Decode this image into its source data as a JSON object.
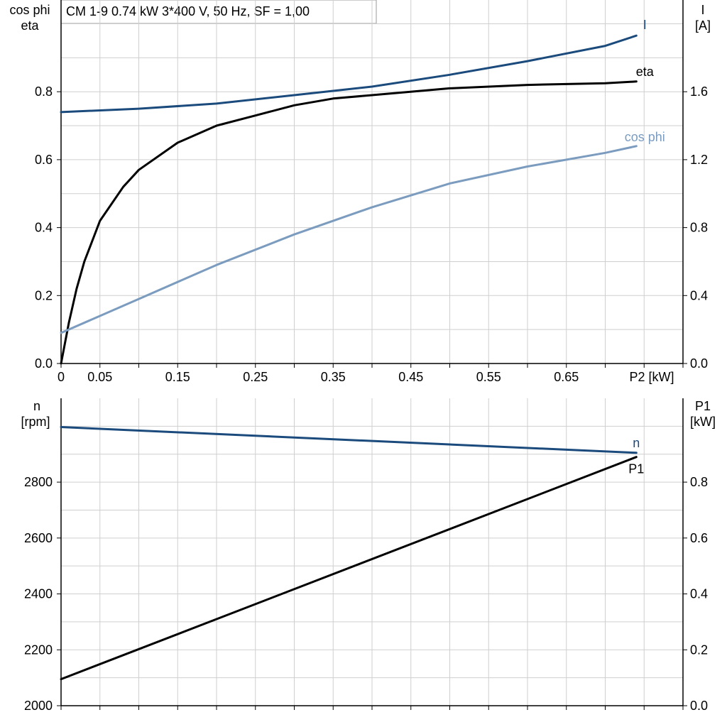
{
  "title": "CM 1-9   0.74 kW   3*400 V, 50 Hz, SF = 1,00",
  "colors": {
    "I": "#1b4a7c",
    "eta": "#000000",
    "cos_phi": "#7b9cbf",
    "n": "#1b4a7c",
    "P1": "#000000"
  },
  "chart_data": [
    {
      "type": "line",
      "id": "top",
      "xlabel": "P2 [kW]",
      "xlim": [
        0,
        0.8
      ],
      "x_ticks": [
        {
          "v": 0,
          "label": "0"
        },
        {
          "v": 0.05,
          "label": "0.05"
        },
        {
          "v": 0.15,
          "label": "0.15"
        },
        {
          "v": 0.25,
          "label": "0.25"
        },
        {
          "v": 0.35,
          "label": "0.35"
        },
        {
          "v": 0.45,
          "label": "0.45"
        },
        {
          "v": 0.55,
          "label": "0.55"
        },
        {
          "v": 0.65,
          "label": "0.65"
        }
      ],
      "ylabel_left": [
        "cos phi",
        "eta"
      ],
      "ylim_left": [
        0,
        1.07
      ],
      "y_ticks_left": [
        "0.0",
        "0.2",
        "0.4",
        "0.6",
        "0.8"
      ],
      "ylabel_right": [
        "I",
        "[A]"
      ],
      "ylim_right": [
        0,
        2.14
      ],
      "y_ticks_right": [
        "0.0",
        "0.4",
        "0.8",
        "1.2",
        "1.6"
      ],
      "grid": true,
      "series": [
        {
          "name": "I",
          "axis": "right",
          "colorKey": "I",
          "x": [
            0,
            0.1,
            0.2,
            0.3,
            0.4,
            0.5,
            0.6,
            0.7,
            0.74
          ],
          "y": [
            1.48,
            1.5,
            1.53,
            1.58,
            1.63,
            1.7,
            1.78,
            1.87,
            1.93
          ]
        },
        {
          "name": "eta",
          "axis": "left",
          "colorKey": "eta",
          "x": [
            0,
            0.01,
            0.02,
            0.03,
            0.05,
            0.08,
            0.1,
            0.15,
            0.2,
            0.25,
            0.3,
            0.35,
            0.4,
            0.5,
            0.6,
            0.7,
            0.74
          ],
          "y": [
            0,
            0.12,
            0.22,
            0.3,
            0.42,
            0.52,
            0.57,
            0.65,
            0.7,
            0.73,
            0.76,
            0.78,
            0.79,
            0.81,
            0.82,
            0.825,
            0.83
          ]
        },
        {
          "name": "cos phi",
          "axis": "left",
          "colorKey": "cos_phi",
          "x": [
            0,
            0.1,
            0.2,
            0.3,
            0.4,
            0.5,
            0.6,
            0.7,
            0.74
          ],
          "y": [
            0.09,
            0.19,
            0.29,
            0.38,
            0.46,
            0.53,
            0.58,
            0.62,
            0.64
          ]
        }
      ]
    },
    {
      "type": "line",
      "id": "bottom",
      "xlim": [
        0,
        0.8
      ],
      "ylabel_left": [
        "n",
        "[rpm]"
      ],
      "ylim_left": [
        2000,
        3100
      ],
      "y_ticks_left": [
        "2000",
        "2200",
        "2400",
        "2600",
        "2800"
      ],
      "ylabel_right": [
        "P1",
        "[kW]"
      ],
      "ylim_right": [
        0,
        1.1
      ],
      "y_ticks_right": [
        "0.0",
        "0.2",
        "0.4",
        "0.6",
        "0.8"
      ],
      "grid": true,
      "series": [
        {
          "name": "n",
          "axis": "left",
          "colorKey": "n",
          "x": [
            0,
            0.74
          ],
          "y": [
            2997,
            2905
          ]
        },
        {
          "name": "P1",
          "axis": "right",
          "colorKey": "P1",
          "x": [
            0,
            0.74
          ],
          "y": [
            0.095,
            0.89
          ]
        }
      ]
    }
  ]
}
